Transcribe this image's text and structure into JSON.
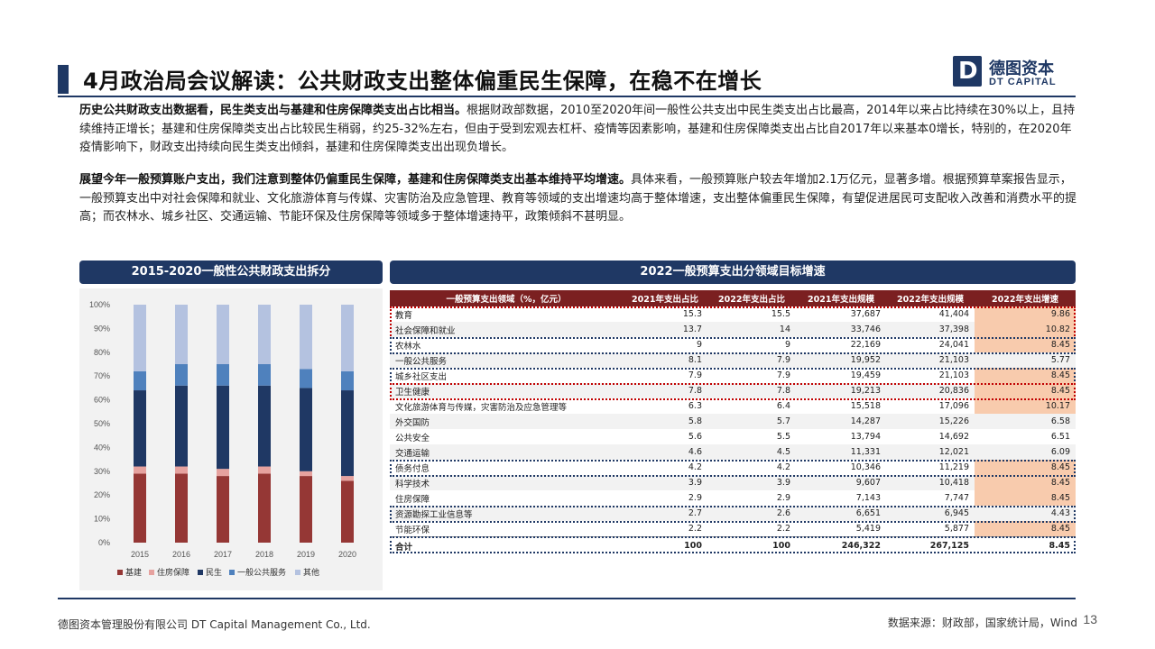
{
  "header": {
    "title": "4月政治局会议解读：公共财政支出整体偏重民生保障，在稳不在增长",
    "logo_cn": "德图资本",
    "logo_en": "DT CAPITAL",
    "logo_mark": "D"
  },
  "paragraphs": [
    {
      "bold": "历史公共财政支出数据看，民生类支出与基建和住房保障类支出占比相当。",
      "text": "根据财政部数据，2010至2020年间一般性公共支出中民生类支出占比最高，2014年以来占比持续在30%以上，且持续维持正增长；基建和住房保障类支出占比较民生稍弱，约25-32%左右，但由于受到宏观去杠杆、疫情等因素影响，基建和住房保障类支出占比自2017年以来基本0增长，特别的，在2020年疫情影响下，财政支出持续向民生类支出倾斜，基建和住房保障类支出出现负增长。"
    },
    {
      "bold": "展望今年一般预算账户支出，我们注意到整体仍偏重民生保障，基建和住房保障类支出基本维持平均增速。",
      "text": "具体来看，一般预算账户较去年增加2.1万亿元，显著多增。根据预算草案报告显示，一般预算支出中对社会保障和就业、文化旅游体育与传媒、灾害防治及应急管理、教育等领域的支出增速均高于整体增速，支出整体偏重民生保障，有望促进居民可支配收入改善和消费水平的提高；而农林水、城乡社区、交通运输、节能环保及住房保障等领域多于整体增速持平，政策倾斜不甚明显。"
    }
  ],
  "left_panel": {
    "title": "2015-2020一般性公共财政支出拆分"
  },
  "right_panel": {
    "title": "2022一般预算支出分领域目标增速"
  },
  "chart_data": {
    "type": "bar",
    "stacked": true,
    "categories": [
      "2015",
      "2016",
      "2017",
      "2018",
      "2019",
      "2020"
    ],
    "series": [
      {
        "name": "基建",
        "color": "#953735",
        "values": [
          29,
          29,
          28,
          29,
          28,
          26
        ]
      },
      {
        "name": "住房保障",
        "color": "#e6a29f",
        "values": [
          3,
          3,
          3,
          3,
          2,
          2
        ]
      },
      {
        "name": "民生",
        "color": "#1f3864",
        "values": [
          32,
          34,
          35,
          34,
          35,
          36
        ]
      },
      {
        "name": "一般公共服务",
        "color": "#4f81bd",
        "values": [
          8,
          9,
          9,
          9,
          8,
          8
        ]
      },
      {
        "name": "其他",
        "color": "#b4c2e0",
        "values": [
          28,
          25,
          25,
          25,
          27,
          28
        ]
      }
    ],
    "ylim": [
      0,
      100
    ],
    "yticks": [
      "0%",
      "10%",
      "20%",
      "30%",
      "40%",
      "50%",
      "60%",
      "70%",
      "80%",
      "90%",
      "100%"
    ],
    "legend_position": "bottom"
  },
  "table": {
    "headers": [
      "一般预算支出领域（%，亿元）",
      "2021年支出占比",
      "2022年支出占比",
      "2021年支出规模",
      "2022年支出规模",
      "2022年支出增速"
    ],
    "rows": [
      [
        "教育",
        "15.3",
        "15.5",
        "37,687",
        "41,404",
        "9.86"
      ],
      [
        "社会保障和就业",
        "13.7",
        "14",
        "33,746",
        "37,398",
        "10.82"
      ],
      [
        "农林水",
        "9",
        "9",
        "22,169",
        "24,041",
        "8.45"
      ],
      [
        "一般公共服务",
        "8.1",
        "7.9",
        "19,952",
        "21,103",
        "5.77"
      ],
      [
        "城乡社区支出",
        "7.9",
        "7.9",
        "19,459",
        "21,103",
        "8.45"
      ],
      [
        "卫生健康",
        "7.8",
        "7.8",
        "19,213",
        "20,836",
        "8.45"
      ],
      [
        "文化旅游体育与传媒，灾害防治及应急管理等",
        "6.3",
        "6.4",
        "15,518",
        "17,096",
        "10.17"
      ],
      [
        "外交国防",
        "5.8",
        "5.7",
        "14,287",
        "15,226",
        "6.58"
      ],
      [
        "公共安全",
        "5.6",
        "5.5",
        "13,794",
        "14,692",
        "6.51"
      ],
      [
        "交通运输",
        "4.6",
        "4.5",
        "11,331",
        "12,021",
        "6.09"
      ],
      [
        "债务付息",
        "4.2",
        "4.2",
        "10,346",
        "11,219",
        "8.45"
      ],
      [
        "科学技术",
        "3.9",
        "3.9",
        "9,607",
        "10,418",
        "8.45"
      ],
      [
        "住房保障",
        "2.9",
        "2.9",
        "7,143",
        "7,747",
        "8.45"
      ],
      [
        "资源勘探工业信息等",
        "2.7",
        "2.6",
        "6,651",
        "6,945",
        "4.43"
      ],
      [
        "节能环保",
        "2.2",
        "2.2",
        "5,419",
        "5,877",
        "8.45"
      ]
    ],
    "total": [
      "合计",
      "100",
      "100",
      "246,322",
      "267,125",
      "8.45"
    ],
    "highlight_rows": [
      0,
      1,
      2,
      4,
      5,
      6,
      10,
      11,
      12,
      14
    ],
    "highlight_color": "#f8cbad"
  },
  "footer": {
    "company": "德图资本管理股份有限公司  DT Capital Management  Co., Ltd.",
    "source": "数据来源：财政部，国家统计局，Wind",
    "page": "13"
  }
}
